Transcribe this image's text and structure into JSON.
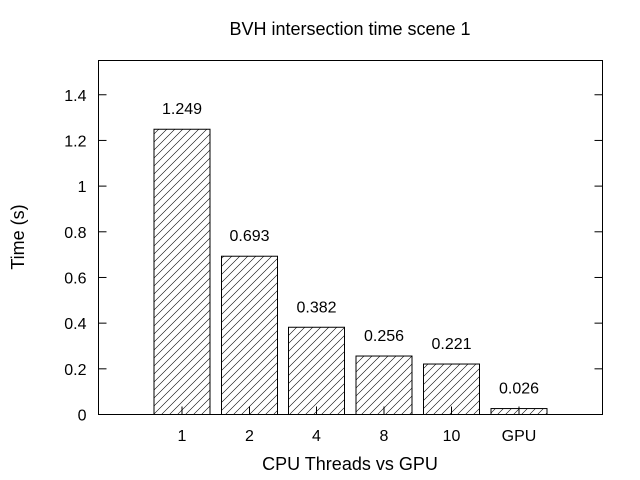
{
  "chart_data": {
    "type": "bar",
    "title": "BVH intersection time scene 1",
    "xlabel": "CPU Threads vs GPU",
    "ylabel": "Time (s)",
    "categories": [
      "1",
      "2",
      "4",
      "8",
      "10",
      "GPU"
    ],
    "values": [
      1.249,
      0.693,
      0.382,
      0.256,
      0.221,
      0.026
    ],
    "data_labels": [
      "1.249",
      "0.693",
      "0.382",
      "0.256",
      "0.221",
      "0.026"
    ],
    "ylim": [
      0,
      1.55
    ],
    "yticks": [
      {
        "value": 0,
        "label": "0"
      },
      {
        "value": 0.2,
        "label": "0.2"
      },
      {
        "value": 0.4,
        "label": "0.4"
      },
      {
        "value": 0.6,
        "label": "0.6"
      },
      {
        "value": 0.8,
        "label": "0.8"
      },
      {
        "value": 1.0,
        "label": "1"
      },
      {
        "value": 1.2,
        "label": "1.2"
      },
      {
        "value": 1.4,
        "label": "1.4"
      }
    ],
    "bar_fill": "diagonal-hatch",
    "bar_stroke_color": "#000000",
    "grid": false,
    "legend": "none"
  }
}
